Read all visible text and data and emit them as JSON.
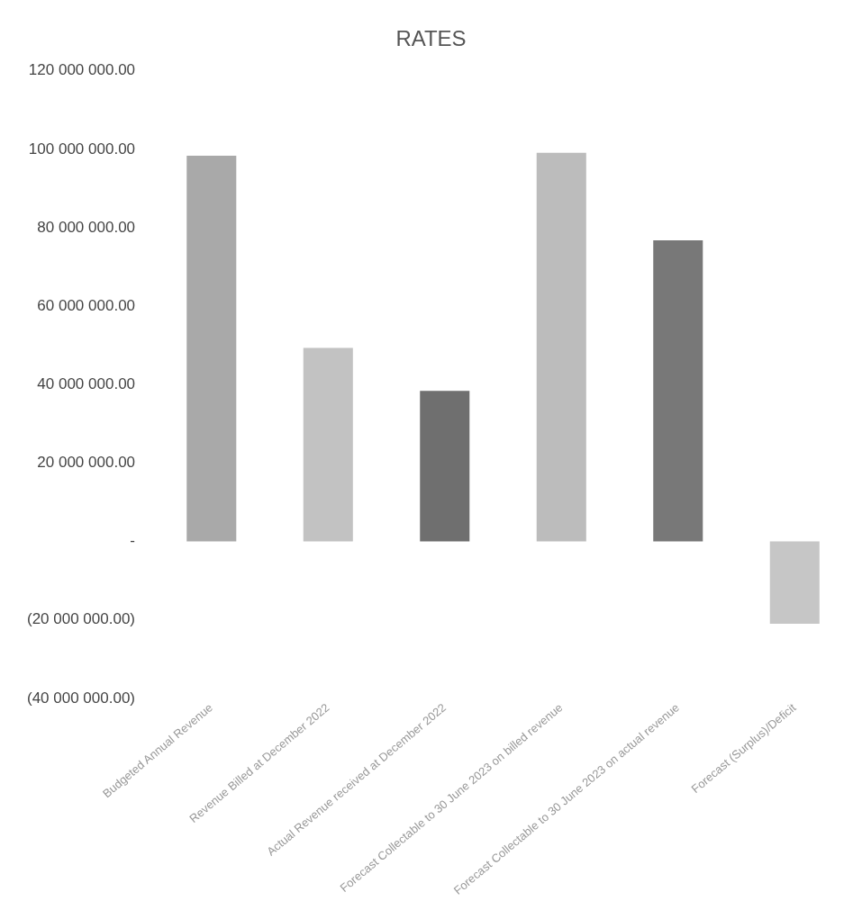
{
  "chart_data": {
    "type": "bar",
    "title": "RATES",
    "categories": [
      "Budgeted Annual Revenue",
      "Revenue Billed at December 2022",
      "Actual Revenue received at December 2022",
      "Forecast Collectable to 30 June 2023 on billed revenue",
      "Forecast Collectable to 30 June 2023 on actual revenue",
      "Forecast (Surplus)/Deficit"
    ],
    "values": [
      98400000,
      49400000,
      38400000,
      99100000,
      76800000,
      -21000000
    ],
    "colors": [
      "#a9a9a9",
      "#c2c2c2",
      "#6f6f6f",
      "#bcbcbc",
      "#787878",
      "#c6c6c6"
    ],
    "ylim": [
      -40000000,
      120000000
    ],
    "yticks": [
      {
        "value": -40000000,
        "label": "(40 000 000.00)"
      },
      {
        "value": -20000000,
        "label": "(20 000 000.00)"
      },
      {
        "value": 0,
        "label": "-"
      },
      {
        "value": 20000000,
        "label": "20 000 000.00"
      },
      {
        "value": 40000000,
        "label": "40 000 000.00"
      },
      {
        "value": 60000000,
        "label": "60 000 000.00"
      },
      {
        "value": 80000000,
        "label": "80 000 000.00"
      },
      {
        "value": 100000000,
        "label": "100 000 000.00"
      },
      {
        "value": 120000000,
        "label": "120 000 000.00"
      }
    ],
    "grid": false,
    "legend": false
  }
}
